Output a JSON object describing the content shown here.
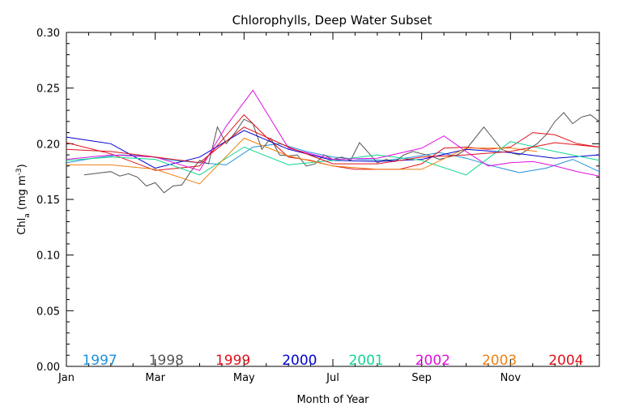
{
  "chart_data": {
    "type": "line",
    "title": "Chlorophylls, Deep Water Subset",
    "xlabel": "Month of Year",
    "ylabel": "Chl",
    "ylabel_sub": "a",
    "ylabel_units_prefix": " (mg m",
    "ylabel_units_sup": "-3",
    "ylabel_units_suffix": ")",
    "xlim": [
      0,
      12
    ],
    "ylim": [
      0.0,
      0.3
    ],
    "x_ticks": [
      {
        "value": 0,
        "label": "Jan"
      },
      {
        "value": 2,
        "label": "Mar"
      },
      {
        "value": 4,
        "label": "May"
      },
      {
        "value": 6,
        "label": "Jul"
      },
      {
        "value": 8,
        "label": "Sep"
      },
      {
        "value": 10,
        "label": "Nov"
      }
    ],
    "y_ticks": [
      {
        "value": 0.0,
        "label": "0.00"
      },
      {
        "value": 0.05,
        "label": "0.05"
      },
      {
        "value": 0.1,
        "label": "0.10"
      },
      {
        "value": 0.15,
        "label": "0.15"
      },
      {
        "value": 0.2,
        "label": "0.20"
      },
      {
        "value": 0.25,
        "label": "0.25"
      },
      {
        "value": 0.3,
        "label": "0.30"
      }
    ],
    "legend_position": "bottom",
    "series": [
      {
        "name": "1997",
        "color": "#1e90dc",
        "x": [
          0.0,
          0.6,
          1.2,
          1.8,
          2.4,
          3.0,
          3.6,
          4.2,
          4.8,
          5.4,
          6.0,
          6.6,
          7.2,
          7.8,
          8.4,
          9.0,
          9.6,
          10.2,
          10.8,
          11.4,
          12.0
        ],
        "y": [
          0.183,
          0.187,
          0.19,
          0.189,
          0.185,
          0.183,
          0.181,
          0.197,
          0.2,
          0.193,
          0.188,
          0.186,
          0.185,
          0.188,
          0.192,
          0.187,
          0.18,
          0.174,
          0.178,
          0.186,
          0.175
        ]
      },
      {
        "name": "1998",
        "color": "#555555",
        "x": [
          0.4,
          0.8,
          1.0,
          1.2,
          1.4,
          1.6,
          1.8,
          2.0,
          2.2,
          2.4,
          2.6,
          2.8,
          3.0,
          3.2,
          3.4,
          3.6,
          3.8,
          4.0,
          4.2,
          4.4,
          4.6,
          4.8,
          5.0,
          5.2,
          5.4,
          5.6,
          5.8,
          6.0,
          6.2,
          6.4,
          6.6,
          6.8,
          7.0,
          7.2,
          7.4,
          7.6,
          7.8,
          8.0,
          8.2,
          8.4,
          8.6,
          8.8,
          9.0,
          9.2,
          9.4,
          9.6,
          9.8,
          10.0,
          10.2,
          10.4,
          10.6,
          10.8,
          11.0,
          11.2,
          11.4,
          11.6,
          11.8,
          12.0
        ],
        "y": [
          0.172,
          0.174,
          0.175,
          0.171,
          0.173,
          0.17,
          0.162,
          0.165,
          0.156,
          0.162,
          0.163,
          0.175,
          0.185,
          0.182,
          0.215,
          0.2,
          0.21,
          0.222,
          0.218,
          0.195,
          0.205,
          0.19,
          0.189,
          0.19,
          0.18,
          0.182,
          0.19,
          0.186,
          0.188,
          0.185,
          0.201,
          0.192,
          0.183,
          0.186,
          0.184,
          0.19,
          0.193,
          0.191,
          0.189,
          0.186,
          0.188,
          0.19,
          0.195,
          0.205,
          0.215,
          0.205,
          0.195,
          0.192,
          0.19,
          0.195,
          0.2,
          0.208,
          0.22,
          0.228,
          0.218,
          0.224,
          0.226,
          0.22
        ]
      },
      {
        "name": "1999",
        "color": "#e0101a",
        "x": [
          0.0,
          1.0,
          2.0,
          3.0,
          4.0,
          4.5,
          5.0,
          5.5,
          6.0,
          6.5,
          7.0,
          7.5,
          8.0,
          8.5,
          9.0,
          9.5,
          10.0,
          10.5,
          11.0,
          11.5,
          12.0
        ],
        "y": [
          0.201,
          0.191,
          0.176,
          0.18,
          0.226,
          0.206,
          0.188,
          0.185,
          0.18,
          0.177,
          0.177,
          0.177,
          0.182,
          0.196,
          0.197,
          0.195,
          0.197,
          0.21,
          0.208,
          0.2,
          0.197
        ]
      },
      {
        "name": "2000",
        "color": "#0000d0",
        "x": [
          0.0,
          1.0,
          2.0,
          3.0,
          4.0,
          5.0,
          6.0,
          7.0,
          8.0,
          9.0,
          10.0,
          11.0,
          12.0
        ],
        "y": [
          0.206,
          0.2,
          0.178,
          0.188,
          0.212,
          0.195,
          0.185,
          0.184,
          0.186,
          0.195,
          0.192,
          0.187,
          0.19
        ]
      },
      {
        "name": "2001",
        "color": "#10d890",
        "x": [
          0.0,
          1.0,
          2.0,
          3.0,
          4.0,
          5.0,
          6.0,
          7.0,
          8.0,
          9.0,
          10.0,
          11.0,
          12.0
        ],
        "y": [
          0.185,
          0.188,
          0.186,
          0.172,
          0.197,
          0.181,
          0.185,
          0.19,
          0.185,
          0.172,
          0.202,
          0.193,
          0.185
        ]
      },
      {
        "name": "2002",
        "color": "#e010e0",
        "x": [
          0.0,
          1.0,
          2.0,
          3.0,
          3.6,
          4.2,
          5.0,
          6.0,
          7.0,
          8.0,
          8.5,
          9.0,
          9.5,
          10.0,
          10.5,
          11.0,
          11.5,
          12.0
        ],
        "y": [
          0.186,
          0.19,
          0.188,
          0.176,
          0.216,
          0.248,
          0.196,
          0.186,
          0.187,
          0.196,
          0.207,
          0.193,
          0.18,
          0.183,
          0.184,
          0.18,
          0.175,
          0.171
        ]
      },
      {
        "name": "2003",
        "color": "#f08010",
        "x": [
          0.0,
          1.0,
          2.0,
          3.0,
          4.0,
          5.0,
          6.0,
          7.0,
          8.0,
          9.0,
          10.0,
          10.6
        ],
        "y": [
          0.181,
          0.181,
          0.177,
          0.164,
          0.205,
          0.189,
          0.18,
          0.177,
          0.177,
          0.196,
          0.196,
          0.193
        ]
      },
      {
        "name": "2004",
        "color": "#e0101a",
        "x": [
          0.0,
          1.0,
          2.0,
          3.0,
          4.0,
          5.0,
          6.0,
          7.0,
          8.0,
          9.0,
          10.0,
          11.0,
          12.0
        ],
        "y": [
          0.195,
          0.193,
          0.188,
          0.183,
          0.215,
          0.197,
          0.182,
          0.182,
          0.188,
          0.19,
          0.193,
          0.201,
          0.197
        ]
      }
    ],
    "grid": false
  }
}
